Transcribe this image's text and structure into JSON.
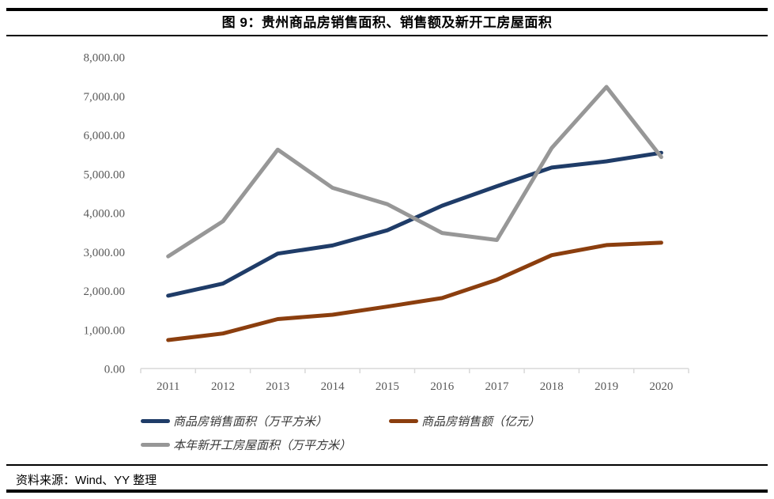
{
  "header": {
    "title": "图 9：贵州商品房销售面积、销售额及新开工房屋面积"
  },
  "footer": {
    "source_text": "资料来源：Wind、YY 整理"
  },
  "chart_data": {
    "type": "line",
    "title": "图 9：贵州商品房销售面积、销售额及新开工房屋面积",
    "categories": [
      "2011",
      "2012",
      "2013",
      "2014",
      "2015",
      "2016",
      "2017",
      "2018",
      "2019",
      "2020"
    ],
    "series": [
      {
        "name": "商品房销售面积（万平方米）",
        "color": "#1F3C68",
        "values": [
          1870,
          2180,
          2950,
          3160,
          3550,
          4180,
          4680,
          5160,
          5320,
          5540
        ]
      },
      {
        "name": "商品房销售额（亿元）",
        "color": "#8B3E0E",
        "values": [
          730,
          900,
          1270,
          1380,
          1590,
          1810,
          2280,
          2910,
          3170,
          3230
        ]
      },
      {
        "name": "本年新开工房屋面积（万平方米）",
        "color": "#979797",
        "values": [
          2880,
          3780,
          5620,
          4640,
          4220,
          3480,
          3300,
          5660,
          7230,
          5430
        ]
      }
    ],
    "ylim": [
      0,
      8000
    ],
    "ytick_step": 1000,
    "ytick_format": "comma-2dp",
    "xlabel": "",
    "ylabel": "",
    "grid": false,
    "legend_position": "bottom-left",
    "axis_color": "#D9D9D9",
    "tick_label_color": "#595959",
    "line_width": 5
  }
}
